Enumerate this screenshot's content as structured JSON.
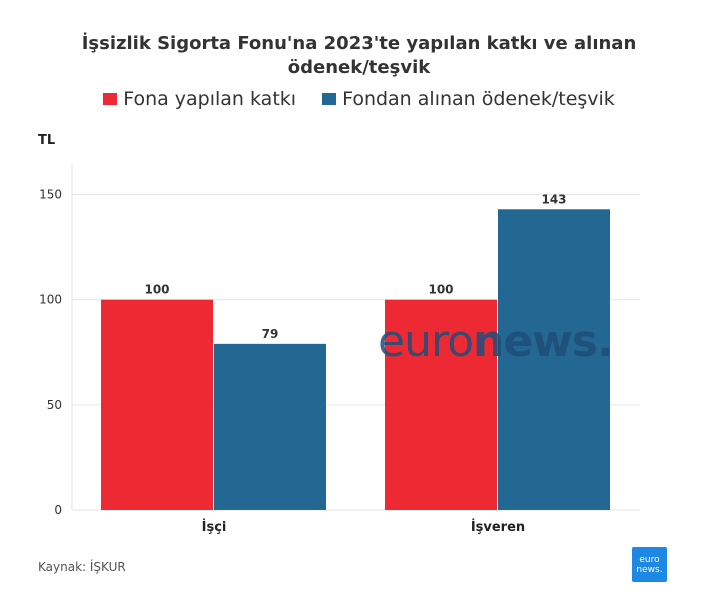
{
  "chart_data": {
    "type": "bar",
    "title_lines": [
      "İşsizlik Sigorta Fonu'na 2023'te yapılan katkı ve alınan",
      "ödenek/teşvik"
    ],
    "ylabel": "TL",
    "categories": [
      "İşçi",
      "İşveren"
    ],
    "series": [
      {
        "name": "Fona yapılan katkı",
        "color": "#ED2A34",
        "values": [
          100,
          100
        ]
      },
      {
        "name": "Fondan alınan ödenek/teşvik",
        "color": "#236892",
        "values": [
          79,
          143
        ]
      }
    ],
    "ylim": [
      0,
      165
    ],
    "yticks": [
      0,
      50,
      100,
      150
    ],
    "grid": true,
    "legend_position": "top-center"
  },
  "source": "Kaynak: İŞKUR",
  "watermark": {
    "light": "euro",
    "heavy": "news."
  },
  "logo": {
    "line1": "euro",
    "line2": "news."
  }
}
